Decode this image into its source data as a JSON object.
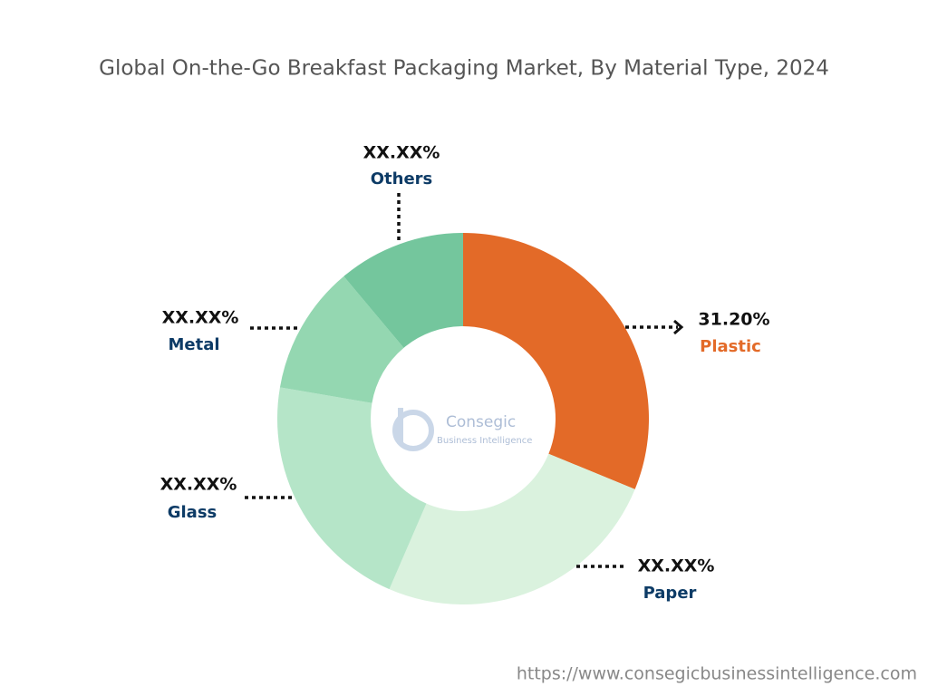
{
  "chart_data": {
    "type": "donut",
    "title": "Global On-the-Go Breakfast Packaging Market, By Material Type, 2024",
    "categories": [
      "Plastic",
      "Paper",
      "Glass",
      "Metal",
      "Others"
    ],
    "values": [
      31.2,
      25.3,
      21.2,
      11.2,
      11.1
    ],
    "value_labels": [
      "31.20%",
      "XX.XX%",
      "XX.XX%",
      "XX.XX%",
      "XX.XX%"
    ],
    "colors": [
      "#e36a28",
      "#daf2de",
      "#b5e5c8",
      "#94d7b1",
      "#74c69d"
    ],
    "label_colors": [
      "#e36a28",
      "#0d3b66",
      "#0d3b66",
      "#0d3b66",
      "#0d3b66"
    ],
    "logo": {
      "name": "Consegic",
      "tagline": "Business Intelligence"
    },
    "source": "https://www.consegicbusinessintelligence.com"
  }
}
